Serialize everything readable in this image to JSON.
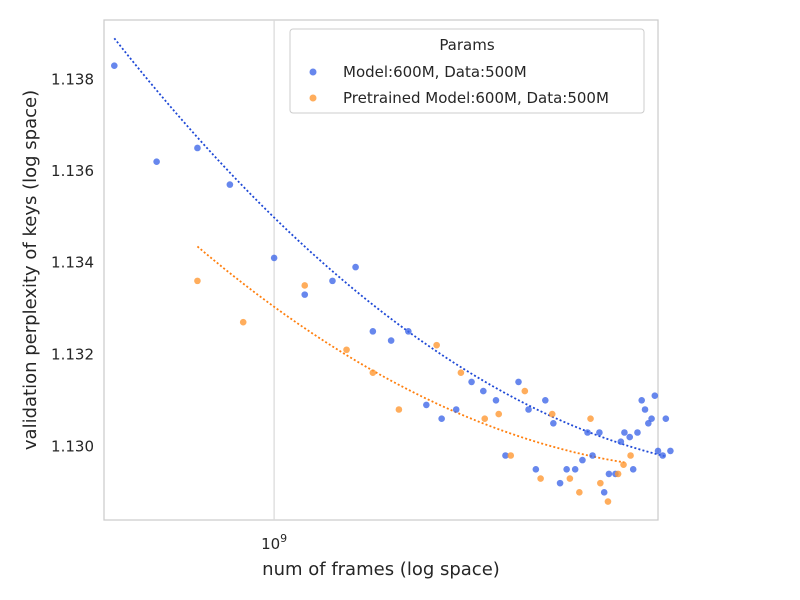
{
  "chart_data": {
    "type": "scatter",
    "xlabel": "num of frames (log space)",
    "ylabel": "validation perplexity of keys (log space)",
    "x_scale": "log",
    "y_scale": "log",
    "xlim": [
      560000000,
      3700000000
    ],
    "ylim": [
      1.1284,
      1.1393
    ],
    "x_ticks": [
      {
        "value": 1000000000,
        "label": "10^9"
      }
    ],
    "y_ticks": [
      {
        "value": 1.13,
        "label": "1.130"
      },
      {
        "value": 1.132,
        "label": "1.132"
      },
      {
        "value": 1.134,
        "label": "1.134"
      },
      {
        "value": 1.136,
        "label": "1.136"
      },
      {
        "value": 1.138,
        "label": "1.138"
      }
    ],
    "grid": "vertical",
    "legend": {
      "title": "Params",
      "position": "top-right"
    },
    "series": [
      {
        "name": "Model:600M, Data:500M",
        "color": "#4169e8",
        "points": [
          [
            580000000,
            1.1383
          ],
          [
            670000000,
            1.1362
          ],
          [
            770000000,
            1.1365
          ],
          [
            860000000,
            1.1357
          ],
          [
            1000000000,
            1.1341
          ],
          [
            1110000000,
            1.1333
          ],
          [
            1220000000,
            1.1336
          ],
          [
            1320000000,
            1.1339
          ],
          [
            1400000000,
            1.1325
          ],
          [
            1490000000,
            1.1323
          ],
          [
            1580000000,
            1.1325
          ],
          [
            1680000000,
            1.1309
          ],
          [
            1770000000,
            1.1306
          ],
          [
            1860000000,
            1.1308
          ],
          [
            1960000000,
            1.1314
          ],
          [
            2040000000,
            1.1312
          ],
          [
            2130000000,
            1.131
          ],
          [
            2200000000,
            1.1298
          ],
          [
            2300000000,
            1.1314
          ],
          [
            2380000000,
            1.1308
          ],
          [
            2440000000,
            1.1295
          ],
          [
            2520000000,
            1.131
          ],
          [
            2590000000,
            1.1305
          ],
          [
            2650000000,
            1.1292
          ],
          [
            2710000000,
            1.1295
          ],
          [
            2790000000,
            1.1295
          ],
          [
            2860000000,
            1.1297
          ],
          [
            2910000000,
            1.1303
          ],
          [
            2960000000,
            1.1298
          ],
          [
            3030000000,
            1.1303
          ],
          [
            3080000000,
            1.129
          ],
          [
            3130000000,
            1.1294
          ],
          [
            3200000000,
            1.1294
          ],
          [
            3260000000,
            1.1301
          ],
          [
            3300000000,
            1.1303
          ],
          [
            3360000000,
            1.1302
          ],
          [
            3400000000,
            1.1295
          ],
          [
            3450000000,
            1.1303
          ],
          [
            3500000000,
            1.131
          ],
          [
            3540000000,
            1.1308
          ],
          [
            3580000000,
            1.1305
          ],
          [
            3620000000,
            1.1306
          ],
          [
            3660000000,
            1.1311
          ],
          [
            3700000000,
            1.1299
          ],
          [
            3760000000,
            1.1298
          ],
          [
            3800000000,
            1.1306
          ],
          [
            3860000000,
            1.1299
          ]
        ],
        "fit": [
          [
            580000000,
            1.1389
          ],
          [
            3800000000,
            1.12978
          ]
        ]
      },
      {
        "name": "Pretrained Model:600M, Data:500M",
        "color": "#ff9933",
        "points": [
          [
            770000000,
            1.1336
          ],
          [
            900000000,
            1.1327
          ],
          [
            1110000000,
            1.1335
          ],
          [
            1280000000,
            1.1321
          ],
          [
            1400000000,
            1.1316
          ],
          [
            1530000000,
            1.1308
          ],
          [
            1740000000,
            1.1322
          ],
          [
            1890000000,
            1.1316
          ],
          [
            2050000000,
            1.1306
          ],
          [
            2150000000,
            1.1307
          ],
          [
            2240000000,
            1.1298
          ],
          [
            2350000000,
            1.1312
          ],
          [
            2480000000,
            1.1293
          ],
          [
            2580000000,
            1.1307
          ],
          [
            2740000000,
            1.1293
          ],
          [
            2830000000,
            1.129
          ],
          [
            2940000000,
            1.1306
          ],
          [
            3040000000,
            1.1292
          ],
          [
            3120000000,
            1.1288
          ],
          [
            3230000000,
            1.1294
          ],
          [
            3290000000,
            1.1296
          ],
          [
            3370000000,
            1.1298
          ]
        ],
        "fit": [
          [
            770000000,
            1.13435
          ],
          [
            3300000000,
            1.12965
          ]
        ]
      }
    ]
  }
}
